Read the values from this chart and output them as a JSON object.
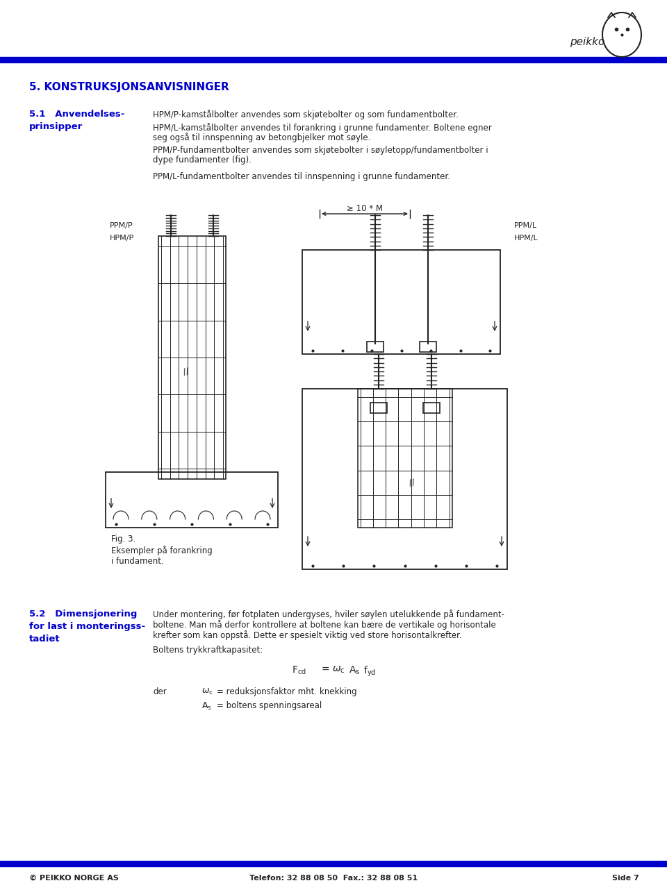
{
  "page_width": 9.6,
  "page_height": 12.82,
  "bg_color": "#ffffff",
  "blue_color": "#0000cd",
  "dark_color": "#222222",
  "title_section": "5. KONSTRUKSJONSANVISNINGER",
  "sec51_a": "5.1   Anvendelses-",
  "sec51_b": "prinsipper",
  "text1": "HPM/P-kamstålbolter anvendes som skjøtebolter og som fundamentbolter.",
  "text2a": "HPM/L-kamstålbolter anvendes til forankring i grunne fundamenter. Boltene egner",
  "text2b": "seg også til innspenning av betongbjelker mot søyle.",
  "text3a": "PPM/P-fundamentbolter anvendes som skjøtebolter i søyletopp/fundamentbolter i",
  "text3b": "dype fundamenter (fig).",
  "text4": "PPM/L-fundamentbolter anvendes til innspenning i grunne fundamenter.",
  "label_ppm_p": "PPM/P",
  "label_hpm_p": "HPM/P",
  "label_ppm_l": "PPM/L",
  "label_hpm_l": "HPM/L",
  "dim_label": "≥ 10 * M",
  "fig3_line1": "Fig. 3.",
  "fig3_line2": "Eksempler på forankring",
  "fig3_line3": "i fundament.",
  "sec52_a": "5.2   Dimensjonering",
  "sec52_b": "for last i monteringss-",
  "sec52_c": "tadiet",
  "text52a": "Under montering, før fotplaten undergyses, hviler søylen utelukkende på fundament-",
  "text52b": "boltene. Man må derfor kontrollere at boltene kan bære de vertikale og horisontale",
  "text52c": "krefter som kan oppstå. Dette er spesielt viktig ved store horisontalkrefter.",
  "text52d": "Boltens trykkraftkapasitet:",
  "footer_left": "© PEIKKO NORGE AS",
  "footer_center": "Telefon: 32 88 08 50  Fax.: 32 88 08 51",
  "footer_right": "Side 7"
}
